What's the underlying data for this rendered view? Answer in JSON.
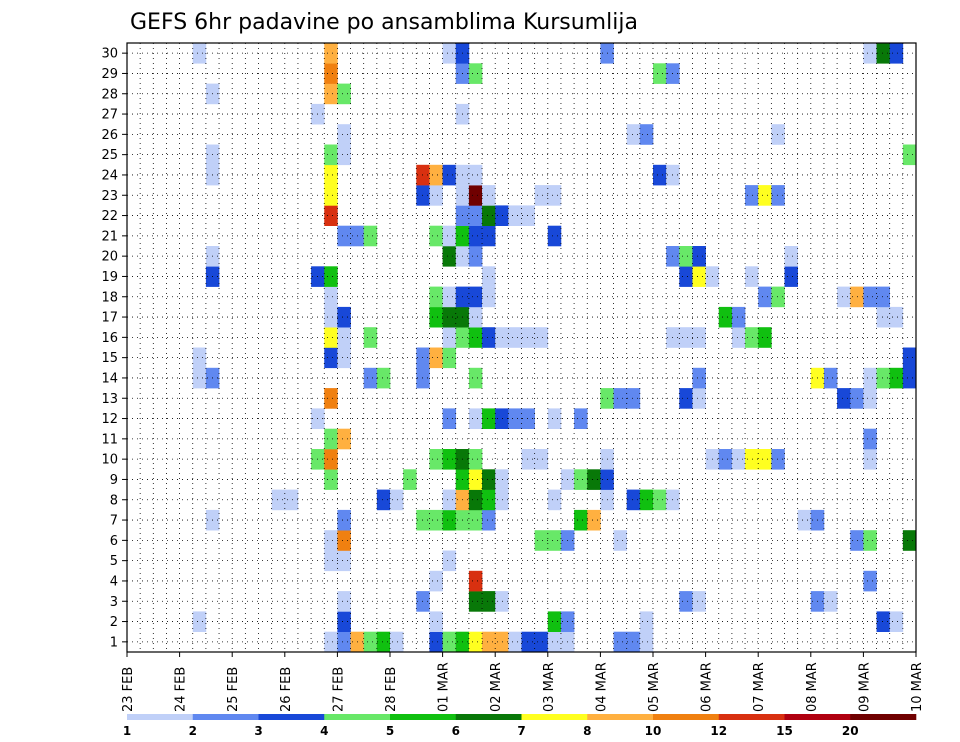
{
  "chart_data": {
    "type": "heatmap",
    "title": "GEFS 6hr padavine po ansamblima Kursumlija",
    "x_tick_labels": [
      "23 FEB",
      "24 FEB",
      "25 FEB",
      "26 FEB",
      "27 FEB",
      "28 FEB",
      "01 MAR",
      "02 MAR",
      "03 MAR",
      "04 MAR",
      "05 MAR",
      "06 MAR",
      "07 MAR",
      "08 MAR",
      "09 MAR",
      "10 MAR"
    ],
    "xlim_steps": [
      0,
      60
    ],
    "y_tick_labels": [
      "1",
      "2",
      "3",
      "4",
      "5",
      "6",
      "7",
      "8",
      "9",
      "10",
      "11",
      "12",
      "13",
      "14",
      "15",
      "16",
      "17",
      "18",
      "19",
      "20",
      "21",
      "22",
      "23",
      "24",
      "25",
      "26",
      "27",
      "28",
      "29",
      "30"
    ],
    "ylim": [
      0,
      30
    ],
    "grid": true,
    "colorbar": {
      "bounds": [
        "1",
        "2",
        "3",
        "4",
        "5",
        "6",
        "7",
        "8",
        "10",
        "12",
        "15",
        "20"
      ],
      "colors": [
        "#c0d0f8",
        "#6088f0",
        "#1848d8",
        "#68e868",
        "#10c010",
        "#087808",
        "#ffff20",
        "#ffb040",
        "#f08010",
        "#d83010",
        "#b00010",
        "#700000"
      ]
    },
    "cells": [
      [
        0,
        15,
        0
      ],
      [
        0,
        16,
        1
      ],
      [
        0,
        17,
        7
      ],
      [
        0,
        18,
        3
      ],
      [
        0,
        19,
        4
      ],
      [
        0,
        20,
        0
      ],
      [
        0,
        23,
        2
      ],
      [
        0,
        24,
        3
      ],
      [
        0,
        25,
        4
      ],
      [
        0,
        26,
        6
      ],
      [
        0,
        27,
        7
      ],
      [
        0,
        28,
        7
      ],
      [
        0,
        29,
        0
      ],
      [
        0,
        30,
        2
      ],
      [
        0,
        31,
        2
      ],
      [
        0,
        32,
        0
      ],
      [
        0,
        33,
        0
      ],
      [
        0,
        37,
        1
      ],
      [
        0,
        38,
        1
      ],
      [
        0,
        39,
        0
      ],
      [
        0,
        60,
        0
      ],
      [
        1,
        5,
        0
      ],
      [
        1,
        16,
        2
      ],
      [
        1,
        23,
        0
      ],
      [
        1,
        32,
        4
      ],
      [
        1,
        33,
        1
      ],
      [
        1,
        39,
        0
      ],
      [
        1,
        57,
        2
      ],
      [
        1,
        58,
        0
      ],
      [
        2,
        16,
        0
      ],
      [
        2,
        22,
        1
      ],
      [
        2,
        26,
        5
      ],
      [
        2,
        27,
        5
      ],
      [
        2,
        28,
        0
      ],
      [
        2,
        42,
        1
      ],
      [
        2,
        43,
        0
      ],
      [
        2,
        52,
        1
      ],
      [
        2,
        53,
        0
      ],
      [
        3,
        23,
        0
      ],
      [
        3,
        26,
        9
      ],
      [
        3,
        56,
        1
      ],
      [
        4,
        15,
        0
      ],
      [
        4,
        16,
        0
      ],
      [
        4,
        24,
        0
      ],
      [
        5,
        15,
        0
      ],
      [
        5,
        16,
        8
      ],
      [
        5,
        31,
        3
      ],
      [
        5,
        32,
        3
      ],
      [
        5,
        33,
        1
      ],
      [
        5,
        37,
        0
      ],
      [
        5,
        55,
        1
      ],
      [
        5,
        56,
        3
      ],
      [
        5,
        59,
        5
      ],
      [
        5,
        60,
        1
      ],
      [
        6,
        6,
        0
      ],
      [
        6,
        16,
        1
      ],
      [
        6,
        22,
        3
      ],
      [
        6,
        23,
        3
      ],
      [
        6,
        24,
        4
      ],
      [
        6,
        25,
        3
      ],
      [
        6,
        26,
        3
      ],
      [
        6,
        27,
        1
      ],
      [
        6,
        34,
        4
      ],
      [
        6,
        35,
        7
      ],
      [
        6,
        51,
        0
      ],
      [
        6,
        52,
        1
      ],
      [
        7,
        11,
        0
      ],
      [
        7,
        12,
        0
      ],
      [
        7,
        19,
        2
      ],
      [
        7,
        20,
        0
      ],
      [
        7,
        24,
        0
      ],
      [
        7,
        25,
        7
      ],
      [
        7,
        26,
        5
      ],
      [
        7,
        27,
        4
      ],
      [
        7,
        28,
        0
      ],
      [
        7,
        32,
        0
      ],
      [
        7,
        36,
        0
      ],
      [
        7,
        38,
        2
      ],
      [
        7,
        39,
        4
      ],
      [
        7,
        40,
        3
      ],
      [
        7,
        41,
        0
      ],
      [
        8,
        15,
        3
      ],
      [
        8,
        21,
        3
      ],
      [
        8,
        25,
        4
      ],
      [
        8,
        26,
        6
      ],
      [
        8,
        27,
        5
      ],
      [
        8,
        28,
        0
      ],
      [
        8,
        33,
        0
      ],
      [
        8,
        34,
        3
      ],
      [
        8,
        35,
        5
      ],
      [
        8,
        36,
        2
      ],
      [
        9,
        14,
        3
      ],
      [
        9,
        15,
        8
      ],
      [
        9,
        23,
        3
      ],
      [
        9,
        24,
        4
      ],
      [
        9,
        25,
        5
      ],
      [
        9,
        26,
        3
      ],
      [
        9,
        30,
        0
      ],
      [
        9,
        31,
        0
      ],
      [
        9,
        36,
        0
      ],
      [
        9,
        44,
        0
      ],
      [
        9,
        45,
        1
      ],
      [
        9,
        46,
        0
      ],
      [
        9,
        47,
        6
      ],
      [
        9,
        48,
        6
      ],
      [
        9,
        49,
        1
      ],
      [
        9,
        56,
        0
      ],
      [
        10,
        15,
        3
      ],
      [
        10,
        16,
        7
      ],
      [
        10,
        56,
        1
      ],
      [
        11,
        14,
        0
      ],
      [
        11,
        24,
        1
      ],
      [
        11,
        26,
        0
      ],
      [
        11,
        27,
        4
      ],
      [
        11,
        28,
        2
      ],
      [
        11,
        29,
        1
      ],
      [
        11,
        30,
        1
      ],
      [
        11,
        32,
        0
      ],
      [
        11,
        34,
        1
      ],
      [
        12,
        15,
        8
      ],
      [
        12,
        36,
        3
      ],
      [
        12,
        37,
        1
      ],
      [
        12,
        38,
        1
      ],
      [
        12,
        42,
        2
      ],
      [
        12,
        43,
        0
      ],
      [
        12,
        54,
        2
      ],
      [
        12,
        55,
        1
      ],
      [
        12,
        56,
        0
      ],
      [
        13,
        5,
        0
      ],
      [
        13,
        6,
        1
      ],
      [
        13,
        18,
        1
      ],
      [
        13,
        19,
        3
      ],
      [
        13,
        22,
        1
      ],
      [
        13,
        26,
        3
      ],
      [
        13,
        43,
        1
      ],
      [
        13,
        52,
        6
      ],
      [
        13,
        53,
        1
      ],
      [
        13,
        56,
        0
      ],
      [
        13,
        57,
        3
      ],
      [
        13,
        58,
        4
      ],
      [
        13,
        59,
        2
      ],
      [
        14,
        5,
        0
      ],
      [
        14,
        15,
        2
      ],
      [
        14,
        16,
        0
      ],
      [
        14,
        22,
        1
      ],
      [
        14,
        23,
        7
      ],
      [
        14,
        24,
        3
      ],
      [
        14,
        59,
        2
      ],
      [
        15,
        15,
        6
      ],
      [
        15,
        16,
        0
      ],
      [
        15,
        18,
        3
      ],
      [
        15,
        24,
        0
      ],
      [
        15,
        25,
        3
      ],
      [
        15,
        26,
        4
      ],
      [
        15,
        27,
        2
      ],
      [
        15,
        28,
        0
      ],
      [
        15,
        29,
        0
      ],
      [
        15,
        30,
        0
      ],
      [
        15,
        31,
        0
      ],
      [
        15,
        41,
        0
      ],
      [
        15,
        42,
        0
      ],
      [
        15,
        43,
        0
      ],
      [
        15,
        46,
        0
      ],
      [
        15,
        47,
        3
      ],
      [
        15,
        48,
        4
      ],
      [
        16,
        15,
        0
      ],
      [
        16,
        16,
        2
      ],
      [
        16,
        23,
        4
      ],
      [
        16,
        24,
        5
      ],
      [
        16,
        25,
        5
      ],
      [
        16,
        26,
        0
      ],
      [
        16,
        45,
        4
      ],
      [
        16,
        46,
        1
      ],
      [
        16,
        57,
        0
      ],
      [
        16,
        58,
        0
      ],
      [
        17,
        15,
        0
      ],
      [
        17,
        23,
        3
      ],
      [
        17,
        24,
        0
      ],
      [
        17,
        25,
        2
      ],
      [
        17,
        26,
        2
      ],
      [
        17,
        27,
        0
      ],
      [
        17,
        48,
        1
      ],
      [
        17,
        49,
        3
      ],
      [
        17,
        54,
        0
      ],
      [
        17,
        55,
        7
      ],
      [
        17,
        56,
        1
      ],
      [
        17,
        57,
        1
      ],
      [
        18,
        6,
        2
      ],
      [
        18,
        14,
        2
      ],
      [
        18,
        15,
        4
      ],
      [
        18,
        27,
        0
      ],
      [
        18,
        42,
        2
      ],
      [
        18,
        43,
        6
      ],
      [
        18,
        44,
        0
      ],
      [
        18,
        47,
        0
      ],
      [
        18,
        50,
        2
      ],
      [
        19,
        6,
        0
      ],
      [
        19,
        24,
        5
      ],
      [
        19,
        25,
        0
      ],
      [
        19,
        26,
        1
      ],
      [
        19,
        41,
        1
      ],
      [
        19,
        42,
        3
      ],
      [
        19,
        43,
        2
      ],
      [
        19,
        50,
        0
      ],
      [
        20,
        16,
        1
      ],
      [
        20,
        17,
        1
      ],
      [
        20,
        18,
        3
      ],
      [
        20,
        23,
        3
      ],
      [
        20,
        24,
        0
      ],
      [
        20,
        25,
        4
      ],
      [
        20,
        26,
        2
      ],
      [
        20,
        27,
        2
      ],
      [
        20,
        32,
        2
      ],
      [
        21,
        15,
        9
      ],
      [
        21,
        25,
        1
      ],
      [
        21,
        26,
        1
      ],
      [
        21,
        27,
        5
      ],
      [
        21,
        28,
        2
      ],
      [
        21,
        29,
        0
      ],
      [
        21,
        30,
        0
      ],
      [
        22,
        15,
        6
      ],
      [
        22,
        22,
        2
      ],
      [
        22,
        23,
        0
      ],
      [
        22,
        25,
        0
      ],
      [
        22,
        26,
        11
      ],
      [
        22,
        27,
        0
      ],
      [
        22,
        31,
        0
      ],
      [
        22,
        32,
        0
      ],
      [
        22,
        47,
        1
      ],
      [
        22,
        48,
        6
      ],
      [
        22,
        49,
        1
      ],
      [
        23,
        6,
        0
      ],
      [
        23,
        15,
        6
      ],
      [
        23,
        22,
        9
      ],
      [
        23,
        23,
        7
      ],
      [
        23,
        24,
        2
      ],
      [
        23,
        25,
        0
      ],
      [
        23,
        26,
        0
      ],
      [
        23,
        40,
        2
      ],
      [
        23,
        41,
        0
      ],
      [
        24,
        6,
        0
      ],
      [
        24,
        15,
        3
      ],
      [
        24,
        16,
        0
      ],
      [
        24,
        60,
        3
      ],
      [
        24,
        59,
        3
      ],
      [
        25,
        16,
        0
      ],
      [
        25,
        38,
        0
      ],
      [
        25,
        39,
        1
      ],
      [
        25,
        49,
        0
      ],
      [
        26,
        14,
        0
      ],
      [
        26,
        25,
        0
      ],
      [
        27,
        6,
        0
      ],
      [
        27,
        15,
        7
      ],
      [
        27,
        16,
        3
      ],
      [
        28,
        15,
        8
      ],
      [
        28,
        25,
        1
      ],
      [
        28,
        26,
        3
      ],
      [
        28,
        40,
        3
      ],
      [
        28,
        41,
        1
      ],
      [
        29,
        5,
        0
      ],
      [
        29,
        15,
        7
      ],
      [
        29,
        24,
        0
      ],
      [
        29,
        25,
        2
      ],
      [
        29,
        36,
        1
      ],
      [
        29,
        56,
        0
      ],
      [
        29,
        57,
        5
      ],
      [
        29,
        58,
        2
      ]
    ]
  }
}
